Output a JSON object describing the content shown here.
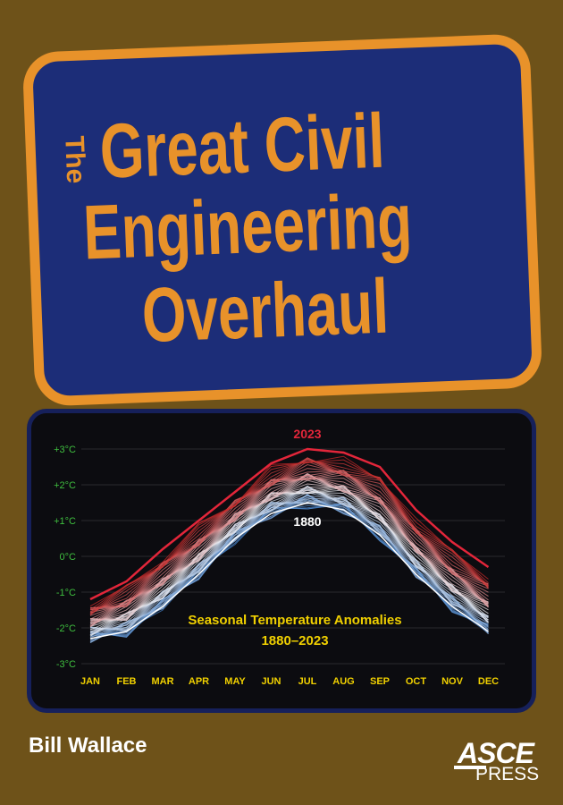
{
  "cover": {
    "title_small": "The",
    "title_lines": [
      "Great Civil",
      "Engineering",
      "Overhaul"
    ],
    "author": "Bill Wallace",
    "publisher": {
      "name": "ASCE",
      "sub": "PRESS"
    },
    "colors": {
      "background": "#6e5219",
      "plaque": "#1c2d78",
      "accent": "#e8922a",
      "chart_bg": "#0c0c10"
    }
  },
  "chart_data": {
    "type": "line",
    "title": "Seasonal Temperature Anomalies",
    "subtitle": "1880–2023",
    "categories": [
      "JAN",
      "FEB",
      "MAR",
      "APR",
      "MAY",
      "JUN",
      "JUL",
      "AUG",
      "SEP",
      "OCT",
      "NOV",
      "DEC"
    ],
    "yticks": [
      "+3°C",
      "+2°C",
      "+1°C",
      "0°C",
      "-1°C",
      "-2°C",
      "-3°C"
    ],
    "ylim": [
      -3,
      3
    ],
    "grid": true,
    "annotations": [
      "2023",
      "1880"
    ],
    "series": [
      {
        "name": "2023",
        "color": "#e3263a",
        "values": [
          -1.2,
          -0.7,
          0.2,
          1.0,
          1.8,
          2.6,
          3.0,
          2.9,
          2.5,
          1.3,
          0.4,
          -0.3
        ]
      },
      {
        "name": "1880",
        "color": "#ffffff",
        "values": [
          -2.3,
          -2.1,
          -1.4,
          -0.5,
          0.5,
          1.2,
          1.5,
          1.3,
          0.6,
          -0.5,
          -1.4,
          -2.1
        ]
      }
    ]
  }
}
